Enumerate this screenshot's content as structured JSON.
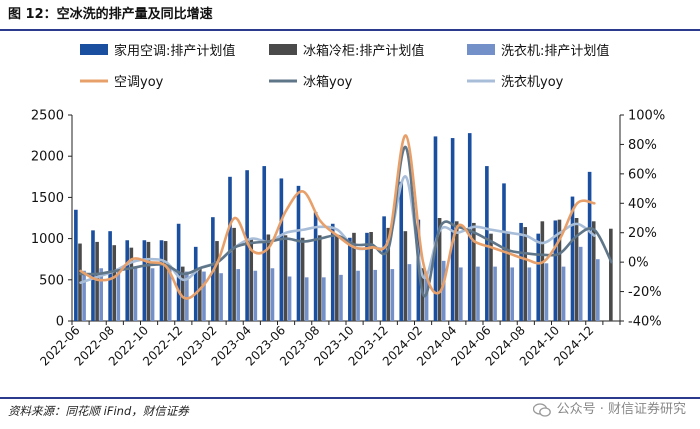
{
  "figure": {
    "title": "图 12：空冰洗的排产量及同比增速",
    "source": "资料来源：同花顺 iFind，财信证券",
    "watermark": "公众号 · 财信证券研究"
  },
  "colors": {
    "ac_bar": "#1a4e9e",
    "fridge_bar": "#4a4a4a",
    "washer_bar": "#7391c8",
    "ac_line": "#e8a06b",
    "fridge_line": "#5f7588",
    "washer_line": "#a8bdd8",
    "rule": "#2b3a8c"
  },
  "chart_data": {
    "type": "bar",
    "categories": [
      "2022-06",
      "2022-07",
      "2022-08",
      "2022-09",
      "2022-10",
      "2022-11",
      "2022-12",
      "2023-01",
      "2023-02",
      "2023-03",
      "2023-04",
      "2023-05",
      "2023-06",
      "2023-07",
      "2023-08",
      "2023-09",
      "2023-10",
      "2023-11",
      "2023-12",
      "2024-01",
      "2024-02",
      "2024-03",
      "2024-04",
      "2024-05",
      "2024-06",
      "2024-07",
      "2024-08",
      "2024-09",
      "2024-10",
      "2024-11",
      "2024-12",
      "2025-01"
    ],
    "xtick_labels": [
      "2022-06",
      "2022-08",
      "2022-10",
      "2022-12",
      "2023-02",
      "2023-04",
      "2023-06",
      "2023-08",
      "2023-10",
      "2023-12",
      "2024-02",
      "2024-04",
      "2024-06",
      "2024-08",
      "2024-10",
      "2024-12"
    ],
    "series": [
      {
        "name": "家用空调:排产计划值",
        "kind": "bar",
        "axis": "left",
        "values": [
          1350,
          1100,
          1090,
          980,
          980,
          980,
          1180,
          900,
          1260,
          1750,
          1830,
          1880,
          1730,
          1640,
          1320,
          1180,
          1010,
          1070,
          1270,
          1690,
          1230,
          2240,
          2220,
          2280,
          1880,
          1670,
          1190,
          1060,
          1220,
          1510,
          1810,
          null
        ]
      },
      {
        "name": "冰箱冷柜:排产计划值",
        "kind": "bar",
        "axis": "left",
        "values": [
          940,
          960,
          920,
          890,
          960,
          970,
          660,
          650,
          970,
          1130,
          1000,
          1050,
          1040,
          1010,
          1040,
          1040,
          1070,
          1080,
          1130,
          1090,
          640,
          1250,
          1210,
          1190,
          1060,
          1080,
          1140,
          1210,
          1230,
          1250,
          1210,
          1120
        ]
      },
      {
        "name": "洗衣机:排产计划值",
        "kind": "bar",
        "axis": "left",
        "values": [
          610,
          640,
          640,
          640,
          640,
          680,
          600,
          600,
          580,
          630,
          610,
          640,
          540,
          530,
          530,
          560,
          610,
          620,
          630,
          690,
          600,
          730,
          650,
          660,
          660,
          650,
          650,
          700,
          660,
          900,
          750,
          null
        ]
      },
      {
        "name": "空调yoy",
        "kind": "line",
        "axis": "right",
        "values": [
          -6,
          -12,
          -10,
          2,
          0,
          -3,
          -24,
          -18,
          0,
          30,
          8,
          10,
          35,
          48,
          28,
          18,
          10,
          10,
          16,
          86,
          0,
          -20,
          24,
          14,
          10,
          6,
          2,
          0,
          16,
          40,
          40,
          null
        ]
      },
      {
        "name": "冰箱yoy",
        "kind": "line",
        "axis": "right",
        "values": [
          -8,
          -8,
          -6,
          -4,
          -2,
          -2,
          -8,
          -4,
          0,
          10,
          13,
          14,
          16,
          14,
          16,
          18,
          12,
          12,
          10,
          78,
          -22,
          24,
          24,
          20,
          14,
          8,
          6,
          5,
          6,
          18,
          22,
          0
        ]
      },
      {
        "name": "洗衣机yoy",
        "kind": "line",
        "axis": "right",
        "values": [
          -14,
          -10,
          -6,
          0,
          2,
          0,
          -12,
          -4,
          0,
          10,
          16,
          14,
          20,
          22,
          24,
          22,
          10,
          10,
          14,
          58,
          -10,
          22,
          20,
          24,
          22,
          20,
          18,
          13,
          20,
          26,
          18,
          null
        ]
      }
    ],
    "legend": [
      "家用空调:排产计划值",
      "冰箱冷柜:排产计划值",
      "洗衣机:排产计划值",
      "空调yoy",
      "冰箱yoy",
      "洗衣机yoy"
    ],
    "ylim_left": [
      0,
      2500
    ],
    "yticks_left": [
      0,
      500,
      1000,
      1500,
      2000,
      2500
    ],
    "ylim_right": [
      -40,
      100
    ],
    "yticks_right": [
      "-40%",
      "-20%",
      "0%",
      "20%",
      "40%",
      "60%",
      "80%",
      "100%"
    ],
    "grid": false,
    "legend_position": "top"
  }
}
